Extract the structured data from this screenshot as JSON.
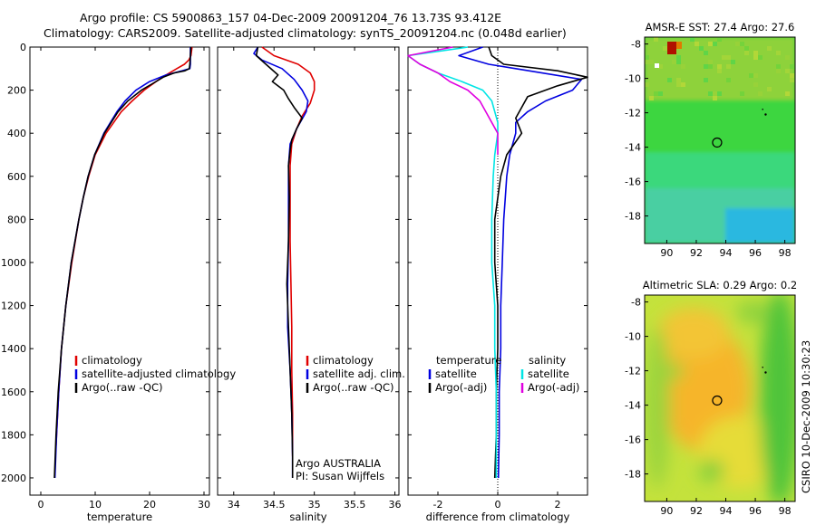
{
  "header": {
    "line1": "Argo profile: CS 5900863_157 04-Dec-2009 20091204_76 13.73S 93.412E",
    "line2": "Climatology: CARS2009. Satellite-adjusted climatology: synTS_20091204.nc (0.048d earlier)"
  },
  "side_label": "CSIRO 10-Dec-2009 10:30:23",
  "colors": {
    "climatology": "#e00000",
    "satellite": "#0000e0",
    "argo": "#000000",
    "sat_salinity": "#00e5e5",
    "argo_salinity": "#e000e0"
  },
  "chart_data": [
    {
      "id": "temperature",
      "type": "line",
      "xlabel": "temperature",
      "ylabel": "",
      "xlim": [
        -2,
        31
      ],
      "ylim": [
        2080,
        0
      ],
      "xticks": [
        0,
        10,
        20,
        30
      ],
      "yticks": [
        0,
        200,
        400,
        600,
        800,
        1000,
        1200,
        1400,
        1600,
        1800,
        2000
      ],
      "legend": [
        "climatology",
        "satellite-adjusted climatology",
        "Argo(..raw -QC)"
      ],
      "series": [
        {
          "name": "climatology",
          "color": "#e00000",
          "depth": [
            0,
            40,
            60,
            80,
            100,
            130,
            160,
            200,
            250,
            300,
            400,
            500,
            600,
            700,
            800,
            1000,
            1200,
            1400,
            1600,
            1800,
            1850
          ],
          "values": [
            27.8,
            27.6,
            27.2,
            26.4,
            25.0,
            23.0,
            21.2,
            19.0,
            16.8,
            14.8,
            12.0,
            10.0,
            8.8,
            7.8,
            7.0,
            5.7,
            4.6,
            3.8,
            3.3,
            2.9,
            2.8
          ]
        },
        {
          "name": "satellite-adjusted climatology",
          "color": "#0000e0",
          "depth": [
            0,
            40,
            80,
            100,
            110,
            130,
            160,
            200,
            250,
            300,
            400,
            500,
            600,
            700,
            800,
            1000,
            1200,
            1400,
            1600,
            1800,
            2000
          ],
          "values": [
            27.5,
            27.5,
            27.5,
            27.4,
            26.0,
            23.0,
            20.0,
            17.5,
            15.5,
            14.0,
            11.6,
            9.9,
            8.7,
            7.8,
            7.0,
            5.6,
            4.6,
            3.8,
            3.3,
            2.9,
            2.6
          ]
        },
        {
          "name": "Argo(..raw -QC)",
          "color": "#000000",
          "depth": [
            0,
            40,
            80,
            100,
            110,
            120,
            140,
            170,
            200,
            250,
            300,
            400,
            500,
            600,
            700,
            800,
            1000,
            1200,
            1400,
            1600,
            1800,
            2000
          ],
          "values": [
            27.6,
            27.5,
            27.4,
            27.3,
            26.5,
            24.5,
            22.5,
            20.5,
            18.5,
            16.0,
            14.2,
            11.7,
            9.9,
            8.7,
            7.8,
            7.0,
            5.6,
            4.6,
            3.8,
            3.2,
            2.8,
            2.5
          ]
        }
      ]
    },
    {
      "id": "salinity",
      "type": "line",
      "xlabel": "salinity",
      "ylabel": "",
      "xlim": [
        33.8,
        36.05
      ],
      "ylim": [
        2080,
        0
      ],
      "xticks": [
        34,
        34.5,
        35,
        35.5,
        36
      ],
      "legend": [
        "climatology",
        "satellite adj. clim.",
        "Argo(..raw -QC)"
      ],
      "annotation": [
        "Argo AUSTRALIA",
        "PI: Susan Wijffels"
      ],
      "series": [
        {
          "name": "climatology",
          "color": "#e00000",
          "depth": [
            0,
            40,
            80,
            120,
            160,
            200,
            260,
            320,
            380,
            450,
            550,
            700,
            900,
            1100,
            1300,
            1500,
            1700,
            1900
          ],
          "values": [
            34.35,
            34.5,
            34.8,
            34.95,
            35.0,
            35.0,
            34.95,
            34.85,
            34.78,
            34.72,
            34.7,
            34.7,
            34.7,
            34.71,
            34.72,
            34.72,
            34.73,
            34.73
          ]
        },
        {
          "name": "satellite adj. clim.",
          "color": "#0000e0",
          "depth": [
            0,
            30,
            60,
            100,
            150,
            200,
            250,
            300,
            380,
            450,
            550,
            700,
            900,
            1100,
            1300,
            1500,
            1700,
            1900,
            2000
          ],
          "values": [
            34.3,
            34.25,
            34.35,
            34.6,
            34.75,
            34.85,
            34.92,
            34.9,
            34.78,
            34.7,
            34.68,
            34.68,
            34.68,
            34.67,
            34.67,
            34.7,
            34.72,
            34.73,
            34.73
          ]
        },
        {
          "name": "Argo(..raw -QC)",
          "color": "#000000",
          "depth": [
            0,
            40,
            80,
            130,
            160,
            200,
            240,
            280,
            330,
            380,
            430,
            480,
            550,
            700,
            900,
            1100,
            1300,
            1500,
            1700,
            1900,
            2000
          ],
          "values": [
            34.3,
            34.28,
            34.4,
            34.55,
            34.48,
            34.62,
            34.68,
            34.75,
            34.85,
            34.78,
            34.72,
            34.7,
            34.68,
            34.69,
            34.68,
            34.66,
            34.68,
            34.7,
            34.72,
            34.73,
            34.73
          ]
        }
      ]
    },
    {
      "id": "difference",
      "type": "line",
      "xlabel": "difference from climatology",
      "ylabel": "",
      "xlim": [
        -3,
        3
      ],
      "ylim": [
        2080,
        0
      ],
      "xticks": [
        -2,
        0,
        2
      ],
      "legend_temperature": {
        "heading": "temperature",
        "items": [
          "satellite",
          "Argo(-adj)"
        ]
      },
      "legend_salinity": {
        "heading": "salinity",
        "items": [
          "satellite",
          "Argo(-adj)"
        ]
      },
      "series": [
        {
          "name": "temperature satellite",
          "color": "#0000e0",
          "depth": [
            0,
            40,
            80,
            100,
            150,
            200,
            250,
            300,
            350,
            400,
            500,
            600,
            700,
            800,
            1000,
            1200,
            1400,
            1600,
            1800,
            2000
          ],
          "values": [
            -0.5,
            -1.3,
            -0.3,
            0.6,
            2.8,
            2.5,
            1.6,
            1.0,
            0.6,
            0.6,
            0.4,
            0.3,
            0.25,
            0.2,
            0.15,
            0.1,
            0.1,
            0.05,
            0.05,
            0.02
          ]
        },
        {
          "name": "temperature Argo(-adj)",
          "color": "#000000",
          "depth": [
            0,
            40,
            80,
            110,
            140,
            180,
            230,
            280,
            330,
            400,
            500,
            600,
            700,
            800,
            1000,
            1200,
            1400,
            1600,
            1800,
            2000
          ],
          "values": [
            -0.3,
            -0.2,
            0.2,
            2.0,
            3.0,
            2.0,
            1.0,
            0.8,
            0.6,
            0.8,
            0.3,
            0.1,
            0.0,
            -0.1,
            -0.1,
            0.0,
            0.0,
            -0.05,
            -0.05,
            -0.1
          ]
        },
        {
          "name": "salinity satellite",
          "color": "#00e5e5",
          "depth": [
            0,
            40,
            80,
            120,
            160,
            200,
            250,
            300,
            350,
            400,
            500,
            600,
            800,
            1000,
            1200,
            1400,
            1600,
            1800,
            2000
          ],
          "values": [
            -1.0,
            -3.0,
            -2.6,
            -2.0,
            -1.2,
            -0.5,
            -0.2,
            -0.1,
            0.0,
            0.0,
            -0.1,
            -0.15,
            -0.2,
            -0.2,
            -0.1,
            -0.1,
            -0.05,
            -0.05,
            -0.05
          ]
        },
        {
          "name": "salinity Argo(-adj)",
          "color": "#e000e0",
          "depth": [
            0,
            40,
            80,
            120,
            160,
            200,
            250,
            300,
            350,
            400,
            500
          ],
          "values": [
            -1.5,
            -3.0,
            -2.6,
            -2.0,
            -1.6,
            -1.0,
            -0.6,
            -0.4,
            -0.2,
            0.0,
            0.0
          ]
        }
      ]
    },
    {
      "id": "sst_map",
      "type": "heatmap",
      "title": "AMSR-E SST: 27.4 Argo: 27.6",
      "xlim": [
        88.5,
        98.7
      ],
      "ylim": [
        -19.6,
        -7.6
      ],
      "xticks": [
        90,
        92,
        94,
        96,
        98
      ],
      "yticks": [
        -8,
        -10,
        -12,
        -14,
        -16,
        -18
      ],
      "argo_position": [
        93.412,
        -13.73
      ]
    },
    {
      "id": "sla_map",
      "type": "heatmap",
      "title": "Altimetric SLA: 0.29 Argo: 0.2",
      "xlim": [
        88.5,
        98.7
      ],
      "ylim": [
        -19.6,
        -7.6
      ],
      "xticks": [
        90,
        92,
        94,
        96,
        98
      ],
      "yticks": [
        -8,
        -10,
        -12,
        -14,
        -16,
        -18
      ],
      "argo_position": [
        93.412,
        -13.73
      ]
    }
  ]
}
